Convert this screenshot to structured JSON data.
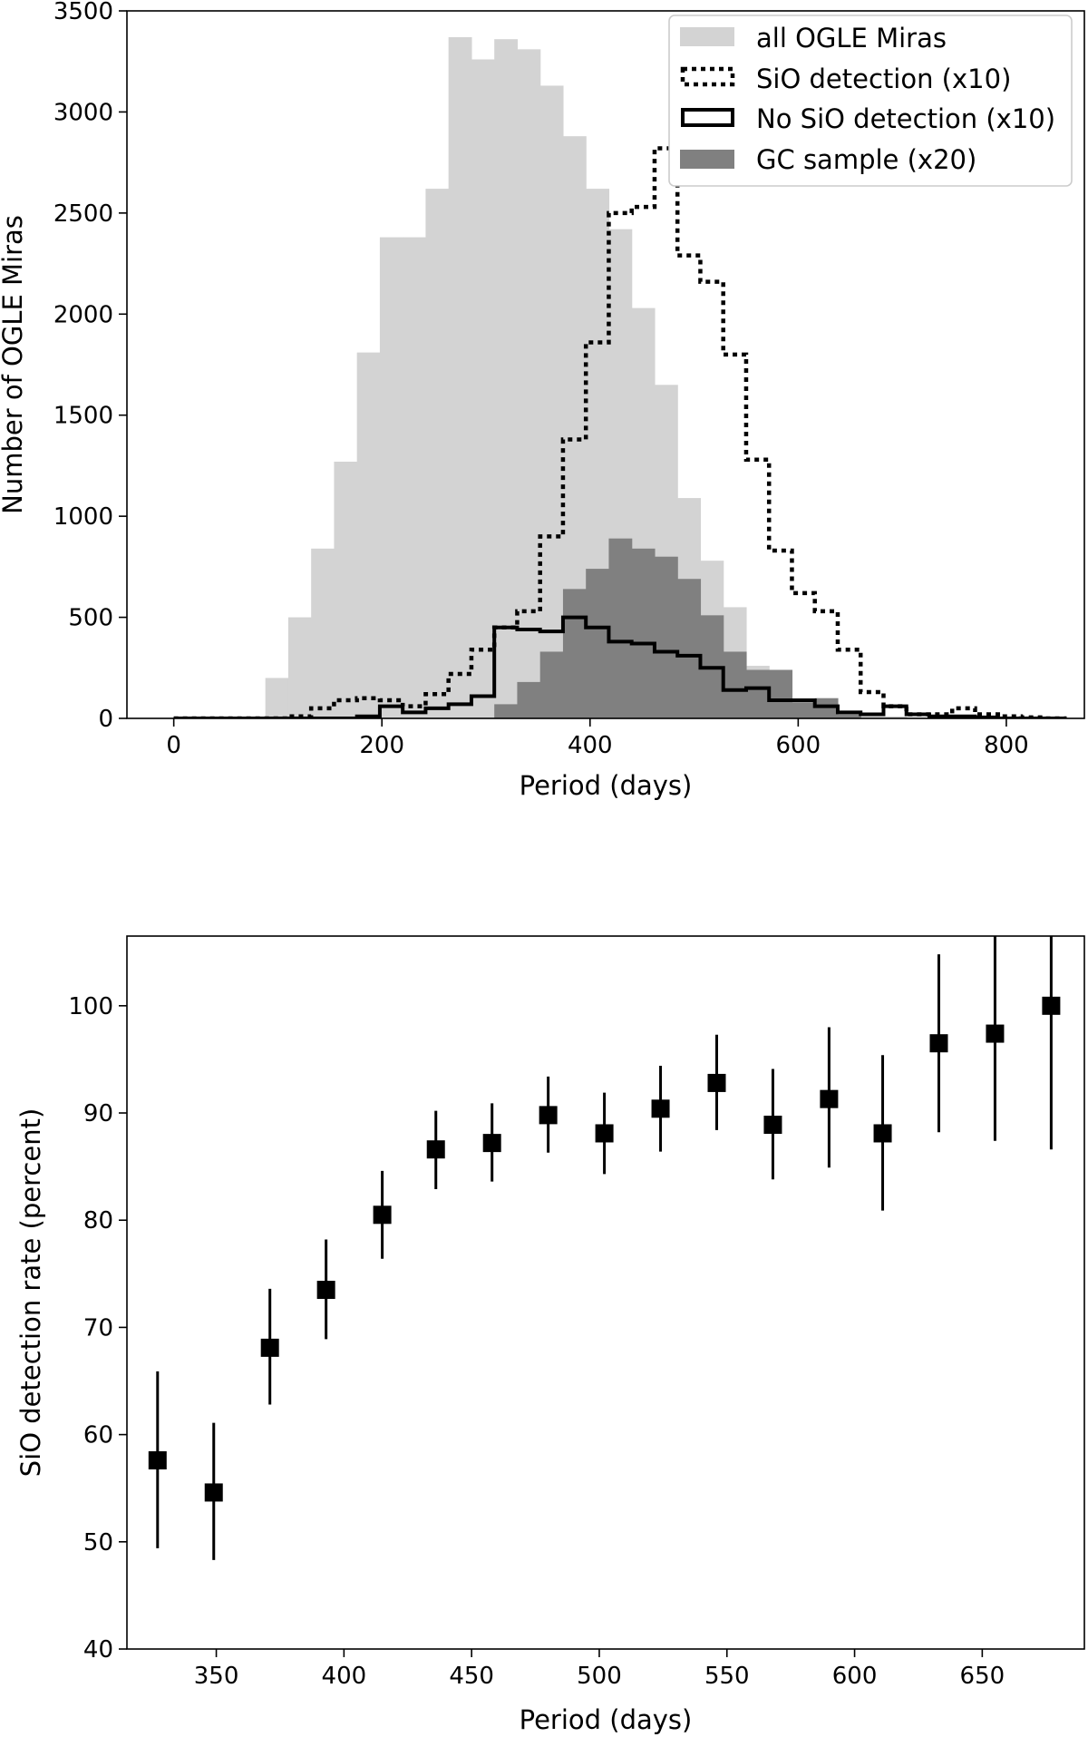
{
  "colors": {
    "all_ogle": "#d3d3d3",
    "gc_sample": "#808080",
    "line": "#000000",
    "background": "#ffffff"
  },
  "chart_data": [
    {
      "type": "histogram",
      "xlabel": "Period (days)",
      "ylabel": "Number of OGLE Miras",
      "xlim": [
        -45,
        875
      ],
      "ylim": [
        0,
        3500
      ],
      "xticks": [
        "0",
        "200",
        "400",
        "600",
        "800"
      ],
      "xtick_values": [
        0,
        200,
        400,
        600,
        800
      ],
      "yticks": [
        "0",
        "500",
        "1000",
        "1500",
        "2000",
        "2500",
        "3000",
        "3500"
      ],
      "ytick_values": [
        0,
        500,
        1000,
        1500,
        2000,
        2500,
        3000,
        3500
      ],
      "legend_placement": "upper right",
      "bins": [
        0,
        22,
        44,
        66,
        88,
        110,
        132,
        154,
        176,
        198,
        220,
        242,
        264,
        286,
        308,
        330,
        352,
        374,
        396,
        418,
        440,
        462,
        484,
        506,
        528,
        550,
        572,
        594,
        616,
        638,
        660,
        682,
        704,
        726,
        748,
        770,
        792,
        814,
        836,
        858
      ],
      "series": [
        {
          "name": "all OGLE Miras",
          "style": "filled-light",
          "values": [
            0,
            0,
            0,
            0,
            200,
            500,
            840,
            1270,
            1810,
            2380,
            2380,
            2620,
            3370,
            3260,
            3360,
            3310,
            3130,
            2880,
            2620,
            2420,
            2030,
            1650,
            1090,
            780,
            550,
            260,
            110,
            60,
            30,
            20,
            10,
            10,
            5,
            0,
            0,
            0,
            0,
            0,
            0
          ]
        },
        {
          "name": "SiO detection (x10)",
          "style": "dotted-step",
          "values": [
            0,
            0,
            0,
            0,
            0,
            10,
            50,
            90,
            100,
            90,
            60,
            120,
            220,
            340,
            450,
            530,
            900,
            1380,
            1860,
            2500,
            2530,
            2820,
            2290,
            2160,
            1800,
            1280,
            830,
            620,
            530,
            340,
            130,
            60,
            20,
            20,
            50,
            20,
            10,
            5,
            0
          ]
        },
        {
          "name": "No SiO detection (x10)",
          "style": "solid-step",
          "values": [
            0,
            0,
            0,
            0,
            0,
            0,
            0,
            0,
            10,
            60,
            30,
            50,
            70,
            110,
            450,
            440,
            430,
            500,
            450,
            380,
            370,
            330,
            310,
            250,
            140,
            150,
            90,
            90,
            60,
            30,
            20,
            60,
            20,
            10,
            10,
            5,
            0,
            0,
            0
          ]
        },
        {
          "name": "GC sample (x20)",
          "style": "filled-dark",
          "values": [
            0,
            0,
            0,
            0,
            0,
            0,
            0,
            0,
            0,
            0,
            0,
            0,
            0,
            0,
            70,
            180,
            330,
            640,
            740,
            890,
            840,
            800,
            690,
            510,
            330,
            240,
            240,
            80,
            100,
            20,
            0,
            0,
            0,
            0,
            0,
            0,
            0,
            0,
            0
          ]
        }
      ]
    },
    {
      "type": "scatter",
      "xlabel": "Period (days)",
      "ylabel": "SiO detection rate (percent)",
      "xlim": [
        315,
        690
      ],
      "ylim": [
        40,
        106.5
      ],
      "xticks": [
        "350",
        "400",
        "450",
        "500",
        "550",
        "600",
        "650"
      ],
      "xtick_values": [
        350,
        400,
        450,
        500,
        550,
        600,
        650
      ],
      "yticks": [
        "40",
        "50",
        "60",
        "70",
        "80",
        "90",
        "100"
      ],
      "ytick_values": [
        40,
        50,
        60,
        70,
        80,
        90,
        100
      ],
      "points": [
        {
          "x": 327,
          "y": 57.6,
          "err_low": 49.4,
          "err_high": 65.9
        },
        {
          "x": 349,
          "y": 54.6,
          "err_low": 48.3,
          "err_high": 61.1
        },
        {
          "x": 371,
          "y": 68.1,
          "err_low": 62.8,
          "err_high": 73.6
        },
        {
          "x": 393,
          "y": 73.5,
          "err_low": 68.9,
          "err_high": 78.2
        },
        {
          "x": 415,
          "y": 80.5,
          "err_low": 76.4,
          "err_high": 84.6
        },
        {
          "x": 436,
          "y": 86.6,
          "err_low": 82.9,
          "err_high": 90.2
        },
        {
          "x": 458,
          "y": 87.2,
          "err_low": 83.6,
          "err_high": 90.9
        },
        {
          "x": 480,
          "y": 89.8,
          "err_low": 86.3,
          "err_high": 93.4
        },
        {
          "x": 502,
          "y": 88.1,
          "err_low": 84.3,
          "err_high": 91.9
        },
        {
          "x": 524,
          "y": 90.4,
          "err_low": 86.4,
          "err_high": 94.4
        },
        {
          "x": 546,
          "y": 92.8,
          "err_low": 88.4,
          "err_high": 97.3
        },
        {
          "x": 568,
          "y": 88.9,
          "err_low": 83.8,
          "err_high": 94.1
        },
        {
          "x": 590,
          "y": 91.3,
          "err_low": 84.9,
          "err_high": 98.0
        },
        {
          "x": 611,
          "y": 88.1,
          "err_low": 80.9,
          "err_high": 95.4
        },
        {
          "x": 633,
          "y": 96.5,
          "err_low": 88.2,
          "err_high": 104.8
        },
        {
          "x": 655,
          "y": 97.4,
          "err_low": 87.4,
          "err_high": 107.0
        },
        {
          "x": 677,
          "y": 100.0,
          "err_low": 86.6,
          "err_high": 107.0
        }
      ]
    }
  ]
}
